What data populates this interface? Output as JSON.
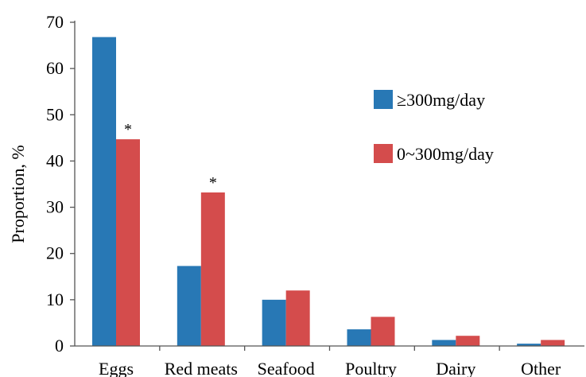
{
  "chart_data": {
    "type": "bar",
    "title": "",
    "xlabel": "",
    "ylabel": "Proportion, %",
    "ylim": [
      0,
      70
    ],
    "yticks": [
      0,
      10,
      20,
      30,
      40,
      50,
      60,
      70
    ],
    "grid": false,
    "legend_position": "right",
    "categories": [
      "Eggs",
      "Red meats",
      "Seafood",
      "Poultry",
      "Dairy",
      "Other"
    ],
    "series": [
      {
        "name": "≥300mg/day",
        "color": "#2878b5",
        "values": [
          66.8,
          17.3,
          10.0,
          3.6,
          1.3,
          0.5
        ]
      },
      {
        "name": "0~300mg/day",
        "color": "#d44c4c",
        "values": [
          44.7,
          33.2,
          12.0,
          6.3,
          2.2,
          1.3
        ]
      }
    ],
    "annotations": [
      {
        "category": "Eggs",
        "series": "0~300mg/day",
        "text": "*"
      },
      {
        "category": "Red meats",
        "series": "0~300mg/day",
        "text": "*"
      }
    ]
  }
}
